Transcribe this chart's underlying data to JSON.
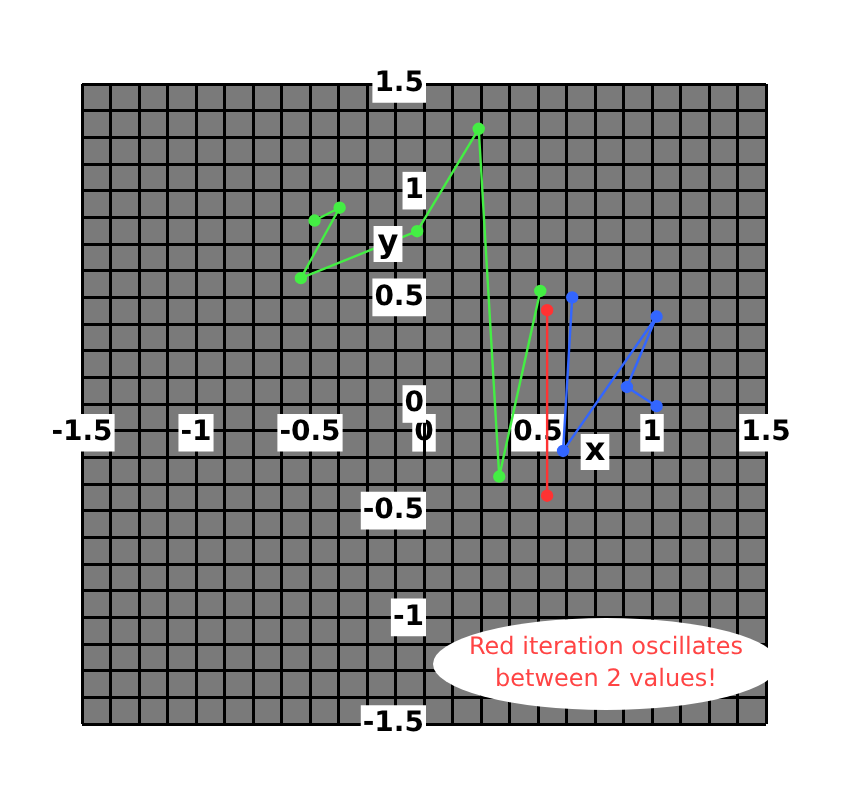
{
  "chart_data": {
    "type": "line",
    "xlabel": "x",
    "ylabel": "y",
    "xlim": [
      -1.5,
      1.5
    ],
    "ylim": [
      -1.5,
      1.5
    ],
    "xticks": [
      -1.5,
      {
        "value": -1.375,
        "label": null
      },
      {
        "value": -1.25,
        "label": null
      },
      {
        "value": -1.125,
        "label": null
      },
      -1,
      {
        "value": -0.875,
        "label": null
      },
      {
        "value": -0.75,
        "label": null
      },
      {
        "value": -0.625,
        "label": null
      },
      -0.5,
      {
        "value": -0.375,
        "label": null
      },
      {
        "value": -0.25,
        "label": null
      },
      {
        "value": -0.125,
        "label": null
      },
      0,
      {
        "value": 0.125,
        "label": null
      },
      {
        "value": 0.25,
        "label": null
      },
      {
        "value": 0.375,
        "label": null
      },
      0.5,
      {
        "value": 0.625,
        "label": null
      },
      {
        "value": 0.75,
        "label": null
      },
      {
        "value": 0.875,
        "label": null
      },
      1,
      {
        "value": 1.125,
        "label": null
      },
      {
        "value": 1.25,
        "label": null
      },
      {
        "value": 1.375,
        "label": null
      },
      1.5
    ],
    "yticks": [
      -1.5,
      {
        "value": -1.375,
        "label": null
      },
      {
        "value": -1.25,
        "label": null
      },
      {
        "value": -1.125,
        "label": null
      },
      -1,
      {
        "value": -0.875,
        "label": null
      },
      {
        "value": -0.75,
        "label": null
      },
      {
        "value": -0.625,
        "label": null
      },
      -0.5,
      {
        "value": -0.375,
        "label": null
      },
      {
        "value": -0.25,
        "label": null
      },
      {
        "value": -0.125,
        "label": null
      },
      0,
      {
        "value": 0.125,
        "label": null
      },
      {
        "value": 0.25,
        "label": null
      },
      {
        "value": 0.375,
        "label": null
      },
      0.5,
      {
        "value": 0.625,
        "label": null
      },
      {
        "value": 0.75,
        "label": null
      },
      {
        "value": 0.875,
        "label": null
      },
      1,
      {
        "value": 1.125,
        "label": null
      },
      {
        "value": 1.25,
        "label": null
      },
      {
        "value": 1.375,
        "label": null
      },
      1.5
    ],
    "grid": true,
    "marker": "circle",
    "series": [
      {
        "color": "#44ee44",
        "x": [
          -0.48,
          -0.37,
          -0.54,
          -0.03,
          0.24,
          0.33,
          0.51
        ],
        "values": [
          0.86,
          0.92,
          0.59,
          0.81,
          1.29,
          -0.34,
          0.53
        ]
      },
      {
        "color": "#3366ff",
        "x": [
          0.65,
          0.61,
          1.02,
          0.89,
          1.02
        ],
        "values": [
          0.5,
          -0.22,
          0.41,
          0.08,
          -0.01
        ]
      },
      {
        "color": "#ff3333",
        "x": [
          0.54,
          0.54
        ],
        "values": [
          0.44,
          -0.43
        ]
      }
    ],
    "annotations": [
      "Red iteration oscillates\nbetween 2 values!"
    ]
  }
}
